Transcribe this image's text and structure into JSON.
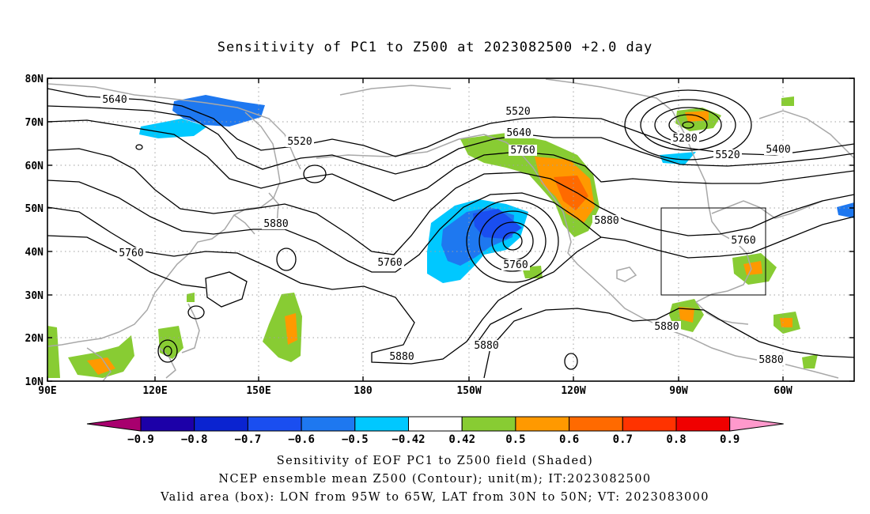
{
  "title": "Sensitivity of PC1 to Z500 at 2023082500 +2.0 day",
  "map": {
    "lat_labels": [
      "80N",
      "70N",
      "60N",
      "50N",
      "40N",
      "30N",
      "20N",
      "10N"
    ],
    "lon_labels": [
      "90E",
      "120E",
      "150E",
      "180",
      "150W",
      "120W",
      "90W",
      "60W"
    ],
    "contour_labels": [
      {
        "text": "5640",
        "region": "north-pacific-west"
      },
      {
        "text": "5520",
        "region": "kamchatka"
      },
      {
        "text": "5520",
        "region": "alaska-north"
      },
      {
        "text": "5640",
        "region": "gulf-of-alaska"
      },
      {
        "text": "5760",
        "region": "gulf-of-alaska"
      },
      {
        "text": "5280",
        "region": "hudson-bay-low"
      },
      {
        "text": "5520",
        "region": "labrador"
      },
      {
        "text": "5400",
        "region": "labrador-east"
      },
      {
        "text": "5880",
        "region": "western-us"
      },
      {
        "text": "5880",
        "region": "north-pacific-central"
      },
      {
        "text": "5760",
        "region": "east-asia"
      },
      {
        "text": "5760",
        "region": "pacific-trough"
      },
      {
        "text": "5760",
        "region": "cutoff-low"
      },
      {
        "text": "5760",
        "region": "great-lakes"
      },
      {
        "text": "5880",
        "region": "central-pacific"
      },
      {
        "text": "5880",
        "region": "tropical-pacific"
      },
      {
        "text": "5880",
        "region": "gulf-of-mexico"
      },
      {
        "text": "5880",
        "region": "caribbean"
      }
    ],
    "valid_box": {
      "lon": [
        -95,
        -65
      ],
      "lat": [
        30,
        50
      ]
    }
  },
  "colorbar": {
    "colors": [
      "#a8006e",
      "#1c00a8",
      "#0a23d0",
      "#1a4ef0",
      "#1e78f0",
      "#00c8ff",
      "#ffffff",
      "#88cc33",
      "#ff9900",
      "#ff6a00",
      "#ff3300",
      "#f00000",
      "#ff99cc"
    ],
    "labels": [
      "−0.9",
      "−0.8",
      "−0.7",
      "−0.6",
      "−0.5",
      "−0.42",
      "0.42",
      "0.5",
      "0.6",
      "0.7",
      "0.8",
      "0.9"
    ]
  },
  "captions": [
    "Sensitivity of EOF PC1 to Z500 field (Shaded)",
    "NCEP ensemble mean Z500 (Contour); unit(m); IT:2023082500",
    "Valid area (box): LON from 95W to 65W, LAT from 30N to 50N; VT: 2023083000"
  ]
}
